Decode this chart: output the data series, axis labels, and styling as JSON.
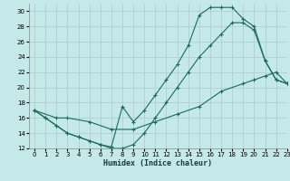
{
  "xlabel": "Humidex (Indice chaleur)",
  "bg_color": "#c5e8e8",
  "grid_color": "#b0d0d0",
  "line_color": "#1a6b5a",
  "xlim": [
    -0.5,
    23
  ],
  "ylim": [
    12,
    31
  ],
  "xticks": [
    0,
    1,
    2,
    3,
    4,
    5,
    6,
    7,
    8,
    9,
    10,
    11,
    12,
    13,
    14,
    15,
    16,
    17,
    18,
    19,
    20,
    21,
    22,
    23
  ],
  "yticks": [
    12,
    14,
    16,
    18,
    20,
    22,
    24,
    26,
    28,
    30
  ],
  "line_top_x": [
    0,
    1,
    2,
    3,
    4,
    5,
    6,
    7,
    8,
    9,
    10,
    11,
    12,
    13,
    14,
    15,
    16,
    17,
    18,
    19,
    20,
    21,
    22,
    23
  ],
  "line_top_y": [
    17,
    16,
    15,
    14,
    13.5,
    13,
    12.5,
    12.2,
    17.5,
    15.5,
    17,
    19,
    21,
    23,
    25.5,
    29.5,
    30.5,
    30.5,
    30.5,
    29,
    28,
    23.5,
    21,
    20.5
  ],
  "line_mid_x": [
    0,
    1,
    2,
    3,
    4,
    5,
    6,
    7,
    8,
    9,
    10,
    11,
    12,
    13,
    14,
    15,
    16,
    17,
    18,
    19,
    20,
    21,
    22,
    23
  ],
  "line_mid_y": [
    17,
    16,
    15,
    14,
    13.5,
    13,
    12.5,
    12,
    12,
    12.5,
    14,
    16,
    18,
    20,
    22,
    24,
    25.5,
    27,
    28.5,
    28.5,
    27.5,
    23.5,
    21,
    20.5
  ],
  "line_bot_x": [
    0,
    2,
    3,
    5,
    7,
    9,
    11,
    13,
    15,
    17,
    19,
    20,
    21,
    22,
    23
  ],
  "line_bot_y": [
    17,
    16,
    16,
    15.5,
    14.5,
    14.5,
    15.5,
    16.5,
    17.5,
    19.5,
    20.5,
    21,
    21.5,
    22,
    20.5
  ]
}
